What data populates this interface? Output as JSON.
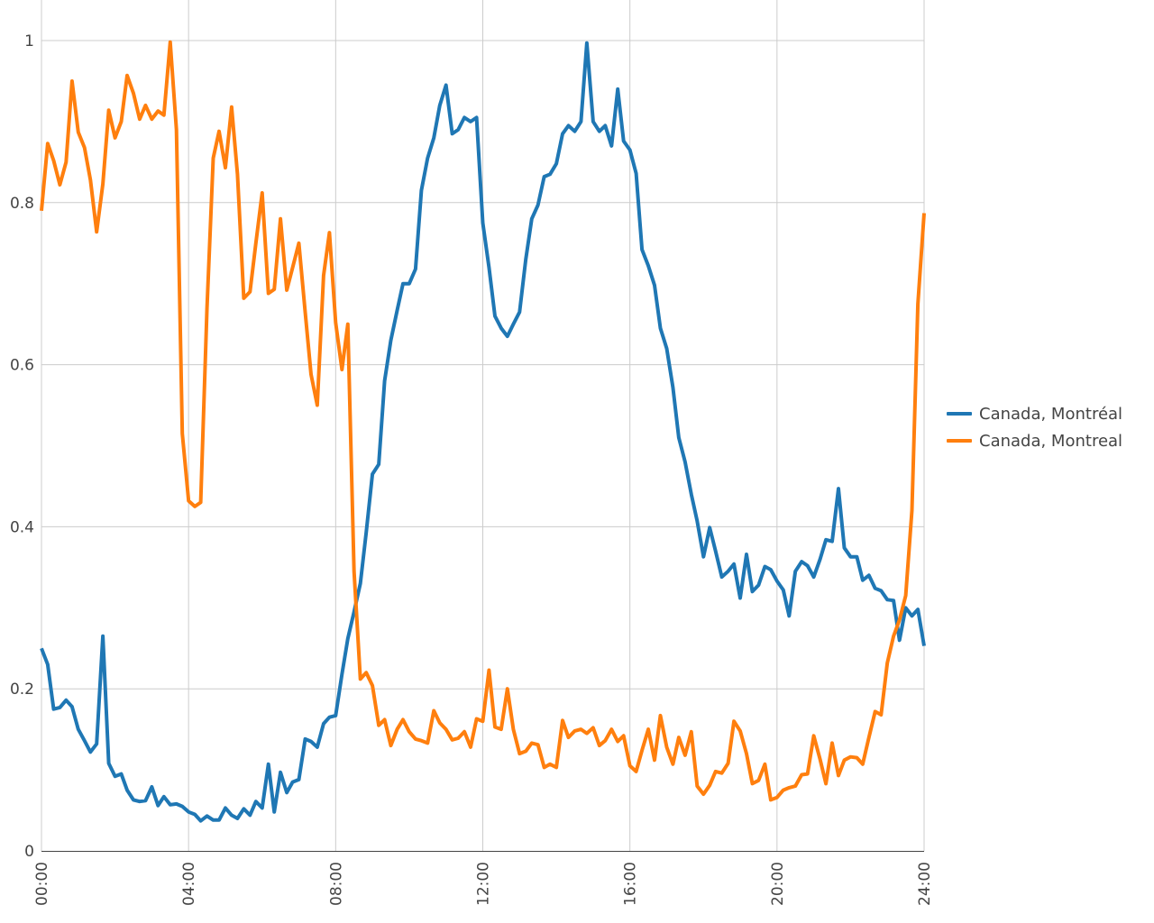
{
  "chart_data": {
    "type": "line",
    "title": "",
    "xlabel": "",
    "ylabel": "",
    "xlim": [
      0,
      24
    ],
    "ylim": [
      0,
      1
    ],
    "grid": true,
    "legend_position": "right",
    "x_ticks": [
      "00:00",
      "04:00",
      "08:00",
      "12:00",
      "16:00",
      "20:00",
      "24:00"
    ],
    "y_ticks": [
      "0",
      "0.2",
      "0.4",
      "0.6",
      "0.8",
      "1"
    ],
    "series": [
      {
        "name": "Canada, Montréal",
        "color": "#1f77b4",
        "points": [
          [
            0,
            0.25
          ],
          [
            0.17,
            0.23
          ],
          [
            0.33,
            0.175
          ],
          [
            0.5,
            0.177
          ],
          [
            0.67,
            0.186
          ],
          [
            0.83,
            0.178
          ],
          [
            1,
            0.15
          ],
          [
            1.17,
            0.136
          ],
          [
            1.33,
            0.122
          ],
          [
            1.5,
            0.132
          ],
          [
            1.67,
            0.265
          ],
          [
            1.83,
            0.108
          ],
          [
            2,
            0.092
          ],
          [
            2.17,
            0.095
          ],
          [
            2.33,
            0.075
          ],
          [
            2.5,
            0.063
          ],
          [
            2.67,
            0.061
          ],
          [
            2.83,
            0.062
          ],
          [
            3,
            0.079
          ],
          [
            3.17,
            0.056
          ],
          [
            3.33,
            0.067
          ],
          [
            3.5,
            0.057
          ],
          [
            3.67,
            0.058
          ],
          [
            3.83,
            0.055
          ],
          [
            4,
            0.048
          ],
          [
            4.17,
            0.045
          ],
          [
            4.33,
            0.037
          ],
          [
            4.5,
            0.043
          ],
          [
            4.67,
            0.038
          ],
          [
            4.83,
            0.038
          ],
          [
            5,
            0.053
          ],
          [
            5.17,
            0.044
          ],
          [
            5.33,
            0.04
          ],
          [
            5.5,
            0.052
          ],
          [
            5.67,
            0.044
          ],
          [
            5.83,
            0.061
          ],
          [
            6,
            0.053
          ],
          [
            6.17,
            0.107
          ],
          [
            6.33,
            0.048
          ],
          [
            6.5,
            0.097
          ],
          [
            6.67,
            0.072
          ],
          [
            6.83,
            0.085
          ],
          [
            7,
            0.088
          ],
          [
            7.17,
            0.138
          ],
          [
            7.33,
            0.135
          ],
          [
            7.5,
            0.128
          ],
          [
            7.67,
            0.157
          ],
          [
            7.83,
            0.165
          ],
          [
            8,
            0.167
          ],
          [
            8.17,
            0.218
          ],
          [
            8.33,
            0.262
          ],
          [
            8.5,
            0.295
          ],
          [
            8.67,
            0.33
          ],
          [
            8.83,
            0.393
          ],
          [
            9,
            0.465
          ],
          [
            9.17,
            0.477
          ],
          [
            9.33,
            0.58
          ],
          [
            9.5,
            0.63
          ],
          [
            9.67,
            0.667
          ],
          [
            9.83,
            0.7
          ],
          [
            10,
            0.7
          ],
          [
            10.17,
            0.718
          ],
          [
            10.33,
            0.815
          ],
          [
            10.5,
            0.855
          ],
          [
            10.67,
            0.88
          ],
          [
            10.83,
            0.92
          ],
          [
            11,
            0.945
          ],
          [
            11.17,
            0.885
          ],
          [
            11.33,
            0.89
          ],
          [
            11.5,
            0.905
          ],
          [
            11.67,
            0.9
          ],
          [
            11.83,
            0.905
          ],
          [
            12,
            0.775
          ],
          [
            12.17,
            0.72
          ],
          [
            12.33,
            0.66
          ],
          [
            12.5,
            0.645
          ],
          [
            12.67,
            0.635
          ],
          [
            12.83,
            0.65
          ],
          [
            13,
            0.665
          ],
          [
            13.17,
            0.73
          ],
          [
            13.33,
            0.78
          ],
          [
            13.5,
            0.797
          ],
          [
            13.67,
            0.832
          ],
          [
            13.83,
            0.835
          ],
          [
            14,
            0.848
          ],
          [
            14.17,
            0.885
          ],
          [
            14.33,
            0.895
          ],
          [
            14.5,
            0.888
          ],
          [
            14.67,
            0.9
          ],
          [
            14.83,
            0.997
          ],
          [
            15,
            0.9
          ],
          [
            15.17,
            0.888
          ],
          [
            15.33,
            0.895
          ],
          [
            15.5,
            0.87
          ],
          [
            15.67,
            0.94
          ],
          [
            15.83,
            0.876
          ],
          [
            16,
            0.865
          ],
          [
            16.17,
            0.836
          ],
          [
            16.33,
            0.742
          ],
          [
            16.5,
            0.722
          ],
          [
            16.67,
            0.698
          ],
          [
            16.83,
            0.645
          ],
          [
            17,
            0.62
          ],
          [
            17.17,
            0.572
          ],
          [
            17.33,
            0.51
          ],
          [
            17.5,
            0.48
          ],
          [
            17.67,
            0.44
          ],
          [
            17.83,
            0.407
          ],
          [
            18,
            0.363
          ],
          [
            18.17,
            0.399
          ],
          [
            18.33,
            0.37
          ],
          [
            18.5,
            0.338
          ],
          [
            18.67,
            0.345
          ],
          [
            18.83,
            0.354
          ],
          [
            19,
            0.312
          ],
          [
            19.17,
            0.366
          ],
          [
            19.33,
            0.32
          ],
          [
            19.5,
            0.328
          ],
          [
            19.67,
            0.351
          ],
          [
            19.83,
            0.347
          ],
          [
            20,
            0.333
          ],
          [
            20.17,
            0.322
          ],
          [
            20.33,
            0.29
          ],
          [
            20.5,
            0.345
          ],
          [
            20.67,
            0.357
          ],
          [
            20.83,
            0.352
          ],
          [
            21,
            0.338
          ],
          [
            21.17,
            0.36
          ],
          [
            21.33,
            0.384
          ],
          [
            21.5,
            0.382
          ],
          [
            21.67,
            0.447
          ],
          [
            21.83,
            0.374
          ],
          [
            22,
            0.363
          ],
          [
            22.17,
            0.363
          ],
          [
            22.33,
            0.334
          ],
          [
            22.5,
            0.34
          ],
          [
            22.67,
            0.324
          ],
          [
            22.83,
            0.321
          ],
          [
            23,
            0.31
          ],
          [
            23.17,
            0.309
          ],
          [
            23.33,
            0.26
          ],
          [
            23.5,
            0.3
          ],
          [
            23.67,
            0.29
          ],
          [
            23.83,
            0.298
          ],
          [
            24,
            0.253
          ]
        ]
      },
      {
        "name": "Canada, Montreal",
        "color": "#ff7f0e",
        "points": [
          [
            0,
            0.79
          ],
          [
            0.17,
            0.873
          ],
          [
            0.33,
            0.852
          ],
          [
            0.5,
            0.822
          ],
          [
            0.67,
            0.85
          ],
          [
            0.83,
            0.95
          ],
          [
            1,
            0.887
          ],
          [
            1.17,
            0.868
          ],
          [
            1.33,
            0.828
          ],
          [
            1.5,
            0.764
          ],
          [
            1.67,
            0.823
          ],
          [
            1.83,
            0.914
          ],
          [
            2,
            0.88
          ],
          [
            2.17,
            0.9
          ],
          [
            2.33,
            0.957
          ],
          [
            2.5,
            0.935
          ],
          [
            2.67,
            0.903
          ],
          [
            2.83,
            0.92
          ],
          [
            3,
            0.903
          ],
          [
            3.17,
            0.913
          ],
          [
            3.33,
            0.908
          ],
          [
            3.5,
            0.998
          ],
          [
            3.67,
            0.89
          ],
          [
            3.83,
            0.515
          ],
          [
            4,
            0.432
          ],
          [
            4.17,
            0.425
          ],
          [
            4.33,
            0.43
          ],
          [
            4.5,
            0.67
          ],
          [
            4.67,
            0.855
          ],
          [
            4.83,
            0.888
          ],
          [
            5,
            0.843
          ],
          [
            5.17,
            0.918
          ],
          [
            5.33,
            0.835
          ],
          [
            5.5,
            0.682
          ],
          [
            5.67,
            0.69
          ],
          [
            5.83,
            0.75
          ],
          [
            6,
            0.812
          ],
          [
            6.17,
            0.688
          ],
          [
            6.33,
            0.693
          ],
          [
            6.5,
            0.78
          ],
          [
            6.67,
            0.692
          ],
          [
            6.83,
            0.72
          ],
          [
            7,
            0.75
          ],
          [
            7.17,
            0.665
          ],
          [
            7.33,
            0.588
          ],
          [
            7.5,
            0.55
          ],
          [
            7.67,
            0.71
          ],
          [
            7.83,
            0.763
          ],
          [
            8,
            0.652
          ],
          [
            8.17,
            0.594
          ],
          [
            8.33,
            0.65
          ],
          [
            8.5,
            0.345
          ],
          [
            8.67,
            0.212
          ],
          [
            8.83,
            0.22
          ],
          [
            9,
            0.204
          ],
          [
            9.17,
            0.155
          ],
          [
            9.33,
            0.162
          ],
          [
            9.5,
            0.13
          ],
          [
            9.67,
            0.15
          ],
          [
            9.83,
            0.162
          ],
          [
            10,
            0.147
          ],
          [
            10.17,
            0.138
          ],
          [
            10.33,
            0.136
          ],
          [
            10.5,
            0.133
          ],
          [
            10.67,
            0.173
          ],
          [
            10.83,
            0.158
          ],
          [
            11,
            0.15
          ],
          [
            11.17,
            0.137
          ],
          [
            11.33,
            0.139
          ],
          [
            11.5,
            0.147
          ],
          [
            11.67,
            0.128
          ],
          [
            11.83,
            0.163
          ],
          [
            12,
            0.16
          ],
          [
            12.17,
            0.223
          ],
          [
            12.33,
            0.153
          ],
          [
            12.5,
            0.15
          ],
          [
            12.67,
            0.2
          ],
          [
            12.83,
            0.15
          ],
          [
            13,
            0.12
          ],
          [
            13.17,
            0.123
          ],
          [
            13.33,
            0.133
          ],
          [
            13.5,
            0.131
          ],
          [
            13.67,
            0.103
          ],
          [
            13.83,
            0.107
          ],
          [
            14,
            0.103
          ],
          [
            14.17,
            0.161
          ],
          [
            14.33,
            0.14
          ],
          [
            14.5,
            0.148
          ],
          [
            14.67,
            0.15
          ],
          [
            14.83,
            0.145
          ],
          [
            15,
            0.152
          ],
          [
            15.17,
            0.13
          ],
          [
            15.33,
            0.136
          ],
          [
            15.5,
            0.15
          ],
          [
            15.67,
            0.135
          ],
          [
            15.83,
            0.142
          ],
          [
            16,
            0.105
          ],
          [
            16.17,
            0.098
          ],
          [
            16.33,
            0.124
          ],
          [
            16.5,
            0.15
          ],
          [
            16.67,
            0.112
          ],
          [
            16.83,
            0.167
          ],
          [
            17,
            0.128
          ],
          [
            17.17,
            0.107
          ],
          [
            17.33,
            0.14
          ],
          [
            17.5,
            0.118
          ],
          [
            17.67,
            0.147
          ],
          [
            17.83,
            0.08
          ],
          [
            18,
            0.07
          ],
          [
            18.17,
            0.081
          ],
          [
            18.33,
            0.098
          ],
          [
            18.5,
            0.096
          ],
          [
            18.67,
            0.108
          ],
          [
            18.83,
            0.16
          ],
          [
            19,
            0.148
          ],
          [
            19.17,
            0.12
          ],
          [
            19.33,
            0.083
          ],
          [
            19.5,
            0.087
          ],
          [
            19.67,
            0.107
          ],
          [
            19.83,
            0.063
          ],
          [
            20,
            0.066
          ],
          [
            20.17,
            0.075
          ],
          [
            20.33,
            0.078
          ],
          [
            20.5,
            0.08
          ],
          [
            20.67,
            0.094
          ],
          [
            20.83,
            0.095
          ],
          [
            21,
            0.142
          ],
          [
            21.17,
            0.113
          ],
          [
            21.33,
            0.083
          ],
          [
            21.5,
            0.133
          ],
          [
            21.67,
            0.093
          ],
          [
            21.83,
            0.112
          ],
          [
            22,
            0.116
          ],
          [
            22.17,
            0.115
          ],
          [
            22.33,
            0.107
          ],
          [
            22.5,
            0.14
          ],
          [
            22.67,
            0.172
          ],
          [
            22.83,
            0.168
          ],
          [
            23,
            0.232
          ],
          [
            23.17,
            0.265
          ],
          [
            23.33,
            0.285
          ],
          [
            23.5,
            0.315
          ],
          [
            23.67,
            0.42
          ],
          [
            23.83,
            0.675
          ],
          [
            24,
            0.787
          ]
        ]
      }
    ]
  }
}
